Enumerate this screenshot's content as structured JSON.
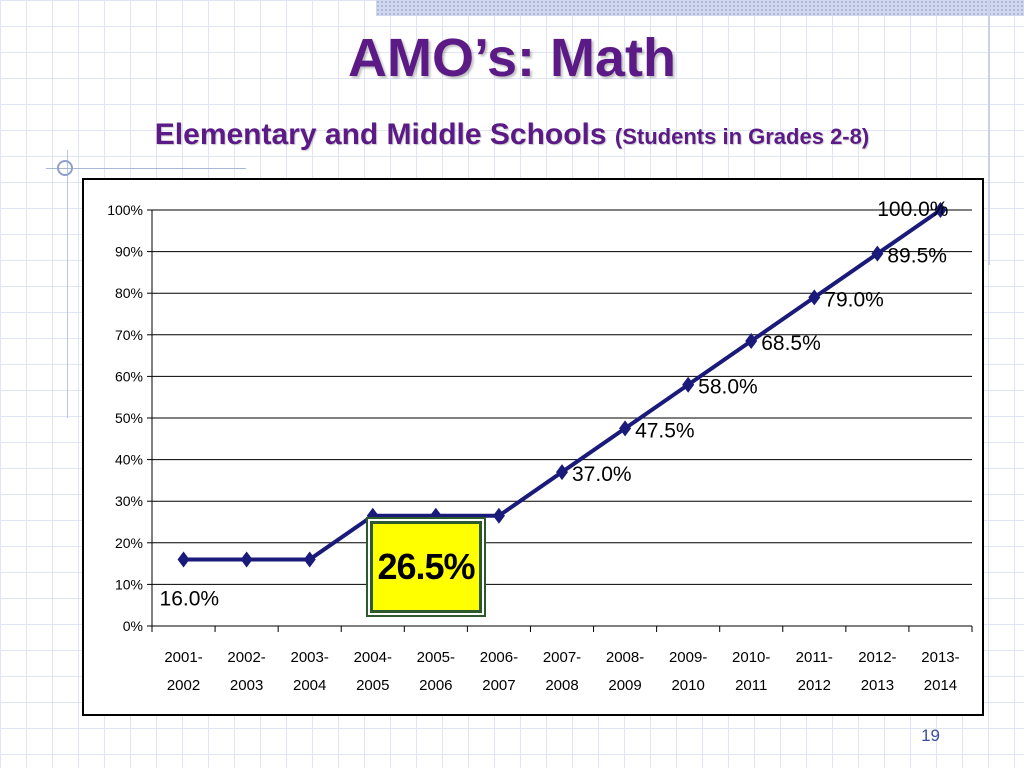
{
  "slide": {
    "title": "AMO’s:  Math",
    "subtitle_main": "Elementary and Middle Schools",
    "subtitle_paren": "(Students in Grades 2-8)",
    "page_number": "19",
    "callout": "26.5%"
  },
  "colors": {
    "title": "#5b1a86",
    "series": "#1a1a7a",
    "callout_fill": "#ffff00",
    "callout_border": "#2d5a2d"
  },
  "chart_data": {
    "type": "line",
    "categories": [
      [
        "2001-",
        "2002"
      ],
      [
        "2002-",
        "2003"
      ],
      [
        "2003-",
        "2004"
      ],
      [
        "2004-",
        "2005"
      ],
      [
        "2005-",
        "2006"
      ],
      [
        "2006-",
        "2007"
      ],
      [
        "2007-",
        "2008"
      ],
      [
        "2008-",
        "2009"
      ],
      [
        "2009-",
        "2010"
      ],
      [
        "2010-",
        "2011"
      ],
      [
        "2011-",
        "2012"
      ],
      [
        "2012-",
        "2013"
      ],
      [
        "2013-",
        "2014"
      ]
    ],
    "values": [
      16.0,
      16.0,
      16.0,
      26.5,
      26.5,
      26.5,
      37.0,
      47.5,
      58.0,
      68.5,
      79.0,
      89.5,
      100.0
    ],
    "data_labels": [
      {
        "index": 0,
        "text": "16.0%"
      },
      {
        "index": 6,
        "text": "37.0%"
      },
      {
        "index": 7,
        "text": "47.5%"
      },
      {
        "index": 8,
        "text": "58.0%"
      },
      {
        "index": 9,
        "text": "68.5%"
      },
      {
        "index": 10,
        "text": "79.0%"
      },
      {
        "index": 11,
        "text": "89.5%"
      },
      {
        "index": 12,
        "text": "100.0%"
      }
    ],
    "y_ticks": [
      "0%",
      "10%",
      "20%",
      "30%",
      "40%",
      "50%",
      "60%",
      "70%",
      "80%",
      "90%",
      "100%"
    ],
    "ylim": [
      0,
      100
    ],
    "grid": true,
    "marker": "diamond"
  }
}
